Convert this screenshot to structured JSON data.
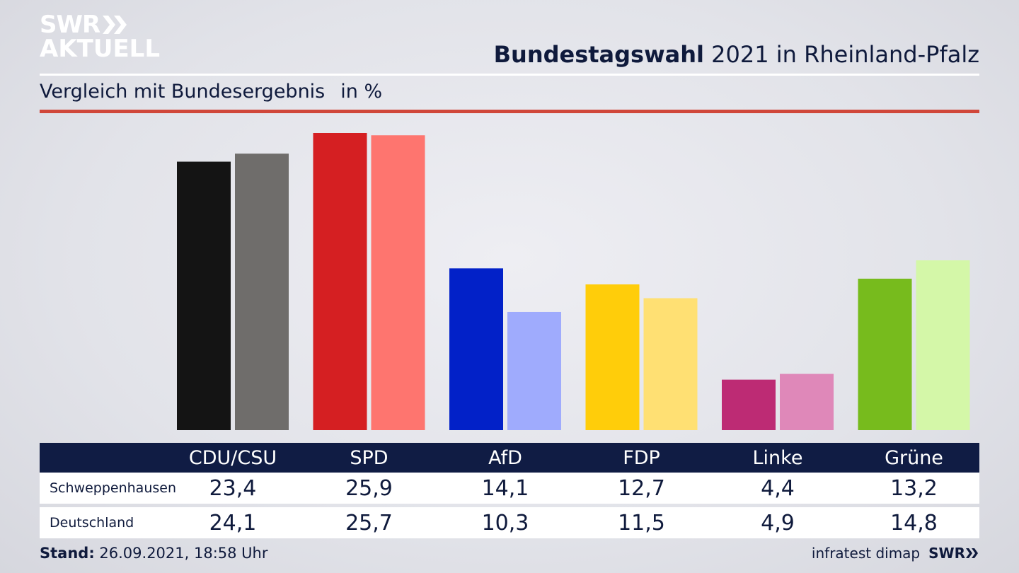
{
  "logo": {
    "line1": "SWR",
    "line2": "AKTUELL"
  },
  "header": {
    "title_bold": "Bundestagswahl",
    "title_rest": " 2021 in Rheinland-Pfalz"
  },
  "subtitle": {
    "text": "Vergleich mit Bundesergebnis",
    "unit": "in %"
  },
  "chart_data": {
    "type": "bar",
    "title": "Bundestagswahl 2021 in Rheinland-Pfalz",
    "subtitle": "Vergleich mit Bundesergebnis",
    "unit": "in %",
    "categories": [
      "CDU/CSU",
      "SPD",
      "AfD",
      "FDP",
      "Linke",
      "Grüne"
    ],
    "series": [
      {
        "name": "Schweppenhausen",
        "values": [
          23.4,
          25.9,
          14.1,
          12.7,
          4.4,
          13.2
        ],
        "colors": [
          "#141414",
          "#d51f22",
          "#0221c8",
          "#ffcd0a",
          "#bd2b74",
          "#77bb1d"
        ]
      },
      {
        "name": "Deutschland",
        "values": [
          24.1,
          25.7,
          10.3,
          11.5,
          4.9,
          14.8
        ],
        "colors": [
          "#6f6d6b",
          "#fe756f",
          "#9fabfd",
          "#ffe073",
          "#df88b9",
          "#d4f7a8"
        ]
      }
    ],
    "value_labels": [
      [
        "23,4",
        "25,9",
        "14,1",
        "12,7",
        "4,4",
        "13,2"
      ],
      [
        "24,1",
        "25,7",
        "10,3",
        "11,5",
        "4,9",
        "14,8"
      ]
    ],
    "ylim": [
      0,
      26
    ],
    "grid": false,
    "legend": "table-below"
  },
  "footer": {
    "stand_label": "Stand:",
    "stand_value": " 26.09.2021, 18:58 Uhr",
    "source": "infratest dimap",
    "brand": "SWR"
  }
}
